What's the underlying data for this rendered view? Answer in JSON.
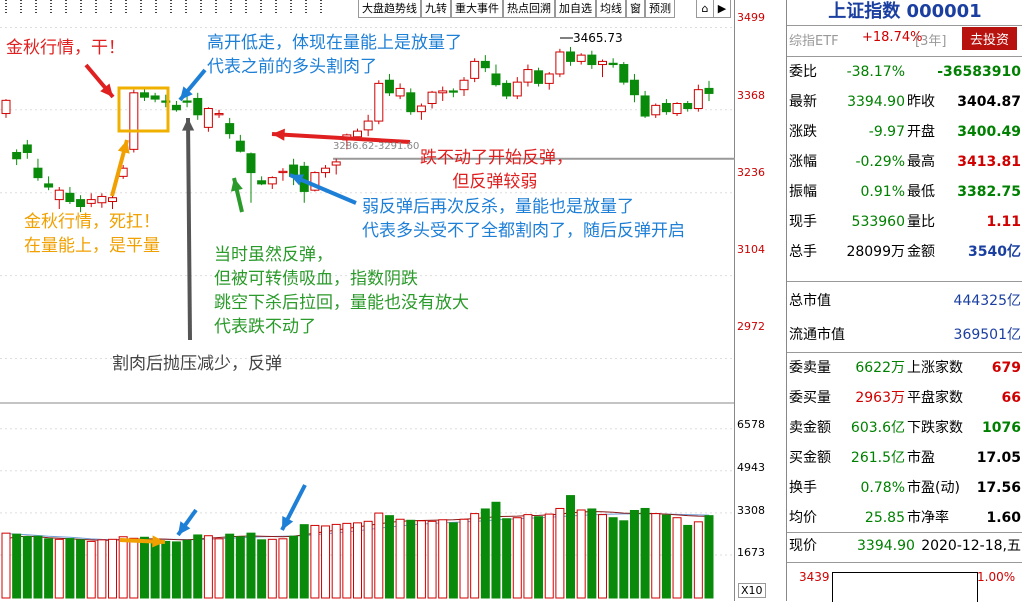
{
  "toolbar": {
    "tabs": [
      "大盘趋势线",
      "九转",
      "重大事件",
      "热点回溯",
      "加自选",
      "均线",
      "窗",
      "预测"
    ]
  },
  "price_axis": [
    "3499",
    "3368",
    "3236",
    "3104",
    "2972"
  ],
  "volume_axis": [
    "6578",
    "4943",
    "3308",
    "1673"
  ],
  "volume_multiplier": "X10",
  "annotations": {
    "high_label": "3465.73",
    "band_label": "3286.62-3291.60",
    "note_red_top": "金秋行情，干！",
    "note_blue_top": "高开低走，体现在量能上是放量了\n代表之前的多头割肉了",
    "note_red_mid": "跌不动了开始反弹，\n      但反弹较弱",
    "note_blue_mid": "弱反弹后再次反杀，量能也是放量了\n代表多头受不了全都割肉了，随后反弹开启",
    "note_orange": "金秋行情，死扛！\n在量能上，是平量",
    "note_green": "当时虽然反弹，\n但被可转债吸血，指数阴跌\n跳空下杀后拉回，量能也没有放大\n代表跌不动了",
    "note_gray": "割肉后抛压减少，反弹"
  },
  "panel": {
    "title": "上证指数 000001",
    "etf_label": "综指ETF",
    "etf_change": "+18.74%",
    "etf_period": "[3年]",
    "invest_button": "去投资",
    "rows1": [
      {
        "label": "委比",
        "v1": "-38.17%",
        "v1c": "green",
        "label2": "",
        "v2": "-36583910",
        "v2c": "green"
      },
      {
        "label": "最新",
        "v1": "3394.90",
        "v1c": "green",
        "label2": "昨收",
        "v2": "3404.87",
        "v2c": "black"
      },
      {
        "label": "涨跌",
        "v1": "-9.97",
        "v1c": "green",
        "label2": "开盘",
        "v2": "3400.49",
        "v2c": "green"
      },
      {
        "label": "涨幅",
        "v1": "-0.29%",
        "v1c": "green",
        "label2": "最高",
        "v2": "3413.81",
        "v2c": "red"
      },
      {
        "label": "振幅",
        "v1": "0.91%",
        "v1c": "green",
        "label2": "最低",
        "v2": "3382.75",
        "v2c": "green"
      },
      {
        "label": "现手",
        "v1": "533960",
        "v1c": "green",
        "label2": "量比",
        "v2": "1.11",
        "v2c": "red"
      },
      {
        "label": "总手",
        "v1": "28099万",
        "v1c": "black",
        "label2": "金额",
        "v2": "3540亿",
        "v2c": "blue"
      }
    ],
    "market_cap_label": "总市值",
    "market_cap": "444325亿",
    "float_cap_label": "流通市值",
    "float_cap": "369501亿",
    "rows2": [
      {
        "label": "委卖量",
        "v1": "6622万",
        "v1c": "green",
        "label2": "上涨家数",
        "v2": "679",
        "v2c": "red"
      },
      {
        "label": "委买量",
        "v1": "2963万",
        "v1c": "red",
        "label2": "平盘家数",
        "v2": "66",
        "v2c": "red"
      },
      {
        "label": "卖金额",
        "v1": "603.6亿",
        "v1c": "green",
        "label2": "下跌家数",
        "v2": "1076",
        "v2c": "green"
      },
      {
        "label": "买金额",
        "v1": "261.5亿",
        "v1c": "green",
        "label2": "市盈",
        "v2": "17.05",
        "v2c": "black"
      },
      {
        "label": "换手",
        "v1": "0.78%",
        "v1c": "green",
        "label2": "市盈(动)",
        "v2": "17.56",
        "v2c": "black"
      },
      {
        "label": "均价",
        "v1": "25.85",
        "v1c": "green",
        "label2": "市净率",
        "v2": "1.60",
        "v2c": "black"
      }
    ],
    "current_price_label": "现价",
    "current_price": "3394.90",
    "date": "2020-12-18,五",
    "mini_left": "3439",
    "mini_right": "1.00%"
  },
  "chart_data": {
    "type": "candlestick",
    "price_ylim": [
      2906,
      3530
    ],
    "volume_ylim": [
      0,
      7500
    ],
    "candles": [
      [
        3362,
        3385,
        3355,
        3383
      ],
      [
        3300,
        3305,
        3280,
        3290
      ],
      [
        3312,
        3320,
        3290,
        3300
      ],
      [
        3275,
        3290,
        3255,
        3260
      ],
      [
        3250,
        3262,
        3240,
        3245
      ],
      [
        3225,
        3245,
        3210,
        3240
      ],
      [
        3235,
        3245,
        3218,
        3222
      ],
      [
        3225,
        3232,
        3205,
        3214
      ],
      [
        3219,
        3235,
        3213,
        3225
      ],
      [
        3220,
        3235,
        3212,
        3230
      ],
      [
        3222,
        3240,
        3210,
        3228
      ],
      [
        3262,
        3280,
        3258,
        3275
      ],
      [
        3305,
        3400,
        3300,
        3395
      ],
      [
        3395,
        3405,
        3382,
        3388
      ],
      [
        3390,
        3395,
        3380,
        3385
      ],
      [
        3382,
        3392,
        3372,
        3380
      ],
      [
        3375,
        3382,
        3365,
        3368
      ],
      [
        3382,
        3392,
        3372,
        3380
      ],
      [
        3386,
        3395,
        3352,
        3360
      ],
      [
        3340,
        3372,
        3333,
        3370
      ],
      [
        3360,
        3368,
        3355,
        3362
      ],
      [
        3346,
        3355,
        3322,
        3330
      ],
      [
        3318,
        3328,
        3300,
        3302
      ],
      [
        3298,
        3300,
        3220,
        3268
      ],
      [
        3255,
        3262,
        3248,
        3250
      ],
      [
        3250,
        3262,
        3242,
        3260
      ],
      [
        3268,
        3275,
        3255,
        3270
      ],
      [
        3280,
        3290,
        3248,
        3262
      ],
      [
        3278,
        3285,
        3220,
        3238
      ],
      [
        3240,
        3270,
        3238,
        3268
      ],
      [
        3268,
        3280,
        3260,
        3275
      ],
      [
        3280,
        3290,
        3265,
        3285
      ],
      [
        3320,
        3330,
        3305,
        3328
      ],
      [
        3325,
        3338,
        3320,
        3334
      ],
      [
        3336,
        3360,
        3326,
        3350
      ],
      [
        3350,
        3415,
        3345,
        3410
      ],
      [
        3415,
        3425,
        3390,
        3395
      ],
      [
        3390,
        3410,
        3385,
        3402
      ],
      [
        3395,
        3402,
        3360,
        3365
      ],
      [
        3365,
        3378,
        3352,
        3374
      ],
      [
        3378,
        3398,
        3370,
        3396
      ],
      [
        3395,
        3405,
        3382,
        3398
      ],
      [
        3398,
        3402,
        3388,
        3396
      ],
      [
        3400,
        3420,
        3390,
        3415
      ],
      [
        3418,
        3450,
        3412,
        3445
      ],
      [
        3445,
        3455,
        3428,
        3435
      ],
      [
        3425,
        3440,
        3405,
        3408
      ],
      [
        3410,
        3415,
        3385,
        3390
      ],
      [
        3390,
        3420,
        3385,
        3412
      ],
      [
        3412,
        3440,
        3405,
        3432
      ],
      [
        3430,
        3435,
        3405,
        3410
      ],
      [
        3410,
        3428,
        3400,
        3425
      ],
      [
        3425,
        3465,
        3420,
        3460
      ],
      [
        3460,
        3468,
        3438,
        3445
      ],
      [
        3445,
        3458,
        3440,
        3455
      ],
      [
        3455,
        3462,
        3433,
        3440
      ],
      [
        3440,
        3448,
        3420,
        3445
      ],
      [
        3442,
        3450,
        3435,
        3440
      ],
      [
        3440,
        3444,
        3408,
        3412
      ],
      [
        3415,
        3425,
        3380,
        3392
      ],
      [
        3390,
        3398,
        3355,
        3358
      ],
      [
        3360,
        3378,
        3355,
        3375
      ],
      [
        3378,
        3385,
        3360,
        3365
      ],
      [
        3362,
        3380,
        3358,
        3378
      ],
      [
        3378,
        3382,
        3365,
        3370
      ],
      [
        3370,
        3408,
        3365,
        3400
      ],
      [
        3402,
        3414,
        3382,
        3394
      ]
    ],
    "volumes": [
      2520,
      2480,
      2390,
      2400,
      2300,
      2280,
      2310,
      2260,
      2200,
      2260,
      2280,
      2380,
      2320,
      2360,
      2240,
      2200,
      2180,
      2240,
      2450,
      2420,
      2300,
      2480,
      2380,
      2520,
      2260,
      2280,
      2300,
      2400,
      2850,
      2820,
      2800,
      2860,
      2900,
      2920,
      2980,
      3300,
      3200,
      3060,
      3020,
      3000,
      2980,
      3040,
      2920,
      3060,
      3280,
      3460,
      3720,
      3080,
      3120,
      3240,
      3160,
      3260,
      3480,
      3980,
      3420,
      3460,
      3240,
      3120,
      3000,
      3400,
      3480,
      3280,
      3220,
      3120,
      2820,
      2960,
      3200
    ],
    "ma1": [
      2300,
      2380,
      2400,
      2380,
      2340,
      2320,
      2300,
      2280,
      2260,
      2240,
      2250,
      2270,
      2290,
      2300,
      2300,
      2290,
      2270,
      2260,
      2290,
      2320,
      2350,
      2380,
      2400,
      2410,
      2400,
      2390,
      2380,
      2400,
      2460,
      2520,
      2580,
      2640,
      2700,
      2760,
      2820,
      2880,
      2940,
      2980,
      3000,
      3010,
      3020,
      3030,
      3040,
      3060,
      3090,
      3120,
      3160,
      3170,
      3180,
      3200,
      3210,
      3230,
      3260,
      3310,
      3340,
      3360,
      3350,
      3330,
      3300,
      3290,
      3290,
      3280,
      3260,
      3230,
      3200,
      3180,
      3170
    ],
    "ma2": [
      2500,
      2480,
      2460,
      2430,
      2400,
      2380,
      2360,
      2330,
      2300,
      2280,
      2270,
      2270,
      2270,
      2280,
      2280,
      2280,
      2280,
      2270,
      2270,
      2280,
      2300,
      2320,
      2340,
      2360,
      2380,
      2390,
      2400,
      2410,
      2430,
      2460,
      2490,
      2530,
      2570,
      2610,
      2660,
      2710,
      2760,
      2800,
      2840,
      2870,
      2900,
      2920,
      2940,
      2960,
      2980,
      3000,
      3030,
      3060,
      3080,
      3100,
      3120,
      3140,
      3160,
      3190,
      3210,
      3230,
      3250,
      3260,
      3270,
      3270,
      3270,
      3270,
      3260,
      3250,
      3240,
      3230,
      3220
    ]
  }
}
